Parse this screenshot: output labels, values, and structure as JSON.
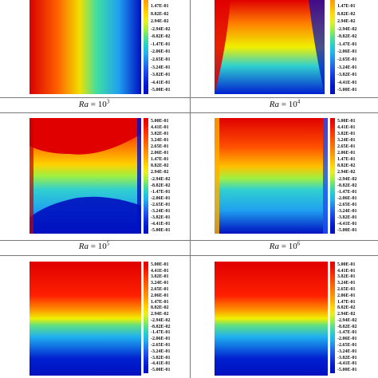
{
  "legend_levels": [
    "5.00E-01",
    "4.41E-01",
    "3.82E-01",
    "3.24E-01",
    "2.65E-01",
    "2.06E-01",
    "1.47E-01",
    "8.82E-02",
    "2.94E-02",
    "-2.94E-02",
    "-8.82E-02",
    "-1.47E-01",
    "-2.06E-01",
    "-2.65E-01",
    "-3.24E-01",
    "-3.82E-01",
    "-4.41E-01",
    "-5.00E-01"
  ],
  "captions": [
    {
      "var": "Ra",
      "eq": " = 10",
      "exp": "3"
    },
    {
      "var": "Ra",
      "eq": " = 10",
      "exp": "4"
    },
    {
      "var": "Ra",
      "eq": " = 10",
      "exp": "5"
    },
    {
      "var": "Ra",
      "eq": " = 10",
      "exp": "6"
    }
  ],
  "colors": {
    "hot": "#e60000",
    "warm": "#ff8000",
    "mid": "#f0f000",
    "cool": "#20d0c0",
    "cold": "#0018c8"
  }
}
